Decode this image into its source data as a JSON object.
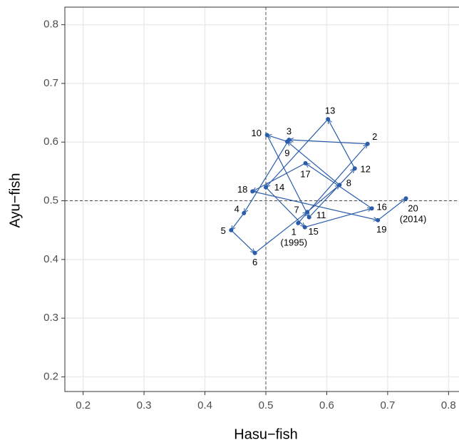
{
  "chart_data": {
    "type": "path-scatter",
    "xlabel": "Hasu−fish",
    "ylabel": "Ayu−fish",
    "color": "#2a5caa",
    "labels": [
      "1",
      "2",
      "3",
      "4",
      "5",
      "6",
      "7",
      "8",
      "9",
      "10",
      "11",
      "12",
      "13",
      "14",
      "15",
      "16",
      "17",
      "18",
      "19",
      "20"
    ],
    "year_labels": [
      "(1995)",
      null,
      null,
      null,
      null,
      null,
      null,
      null,
      null,
      null,
      null,
      null,
      null,
      null,
      null,
      null,
      null,
      null,
      null,
      "(2014)"
    ],
    "x": [
      0.553,
      0.667,
      0.538,
      0.464,
      0.443,
      0.482,
      0.568,
      0.621,
      0.535,
      0.502,
      0.571,
      0.646,
      0.602,
      0.5,
      0.564,
      0.674,
      0.565,
      0.478,
      0.684,
      0.73
    ],
    "y": [
      0.462,
      0.597,
      0.604,
      0.479,
      0.45,
      0.411,
      0.481,
      0.527,
      0.601,
      0.612,
      0.472,
      0.555,
      0.639,
      0.523,
      0.455,
      0.487,
      0.564,
      0.516,
      0.467,
      0.504
    ],
    "xlim": [
      0.17,
      0.83
    ],
    "ylim": [
      0.175,
      0.83
    ],
    "xticks": [
      0.2,
      0.3,
      0.4,
      0.5,
      0.6,
      0.7,
      0.8
    ],
    "yticks": [
      0.2,
      0.3,
      0.4,
      0.5,
      0.6,
      0.7,
      0.8
    ],
    "vline": 0.5,
    "hline": 0.5,
    "grid": true
  }
}
